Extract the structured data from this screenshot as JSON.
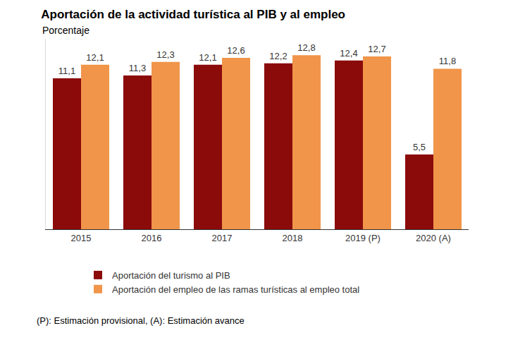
{
  "chart_data": {
    "type": "bar",
    "title": "Aportación de la actividad turística al PIB y al empleo",
    "subtitle": "Porcentaje",
    "categories": [
      "2015",
      "2016",
      "2017",
      "2018",
      "2019 (P)",
      "2020 (A)"
    ],
    "series": [
      {
        "name": "Aportación del turismo al PIB",
        "color": "#8B0A0A",
        "values": [
          11.1,
          11.3,
          12.1,
          12.2,
          12.4,
          5.5
        ],
        "value_labels": [
          "11,1",
          "11,3",
          "12,1",
          "12,2",
          "12,4",
          "5,5"
        ]
      },
      {
        "name": "Aportación del empleo de las ramas turísticas al empleo total",
        "color": "#F0954A",
        "values": [
          12.1,
          12.3,
          12.6,
          12.8,
          12.7,
          11.8
        ],
        "value_labels": [
          "12,1",
          "12,3",
          "12,6",
          "12,8",
          "12,7",
          "11,8"
        ]
      }
    ],
    "ylim": [
      0,
      14
    ],
    "tick_labels": "x",
    "grid": false,
    "data_labels": true,
    "legend": "bottom",
    "annotations": [
      "(P): Estimación provisional, (A): Estimación avance"
    ]
  }
}
